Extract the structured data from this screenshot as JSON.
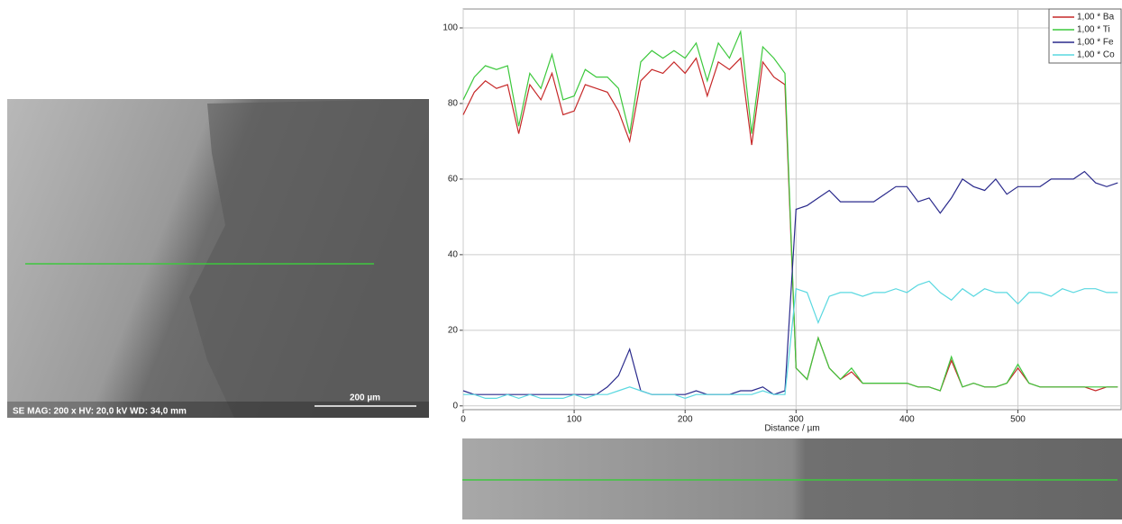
{
  "sem_image": {
    "info": "SE  MAG: 200 x  HV: 20,0 kV  WD: 34,0 mm",
    "scale_bar": "200 µm"
  },
  "chart_data": {
    "type": "line",
    "x_label": "Distance / µm",
    "x": [
      0,
      10,
      20,
      30,
      40,
      50,
      60,
      70,
      80,
      90,
      100,
      110,
      120,
      130,
      140,
      150,
      160,
      170,
      180,
      190,
      200,
      210,
      220,
      230,
      240,
      250,
      260,
      270,
      280,
      290,
      300,
      310,
      320,
      330,
      340,
      350,
      360,
      370,
      380,
      390,
      400,
      410,
      420,
      430,
      440,
      450,
      460,
      470,
      480,
      490,
      500,
      510,
      520,
      530,
      540,
      550,
      560,
      570,
      580,
      590
    ],
    "series": [
      {
        "name": "1,00 * Ba",
        "color": "#c62828",
        "values": [
          77,
          83,
          86,
          84,
          85,
          72,
          85,
          81,
          88,
          77,
          78,
          85,
          84,
          83,
          78,
          70,
          86,
          89,
          88,
          91,
          88,
          92,
          82,
          91,
          89,
          92,
          69,
          91,
          87,
          85,
          10,
          7,
          18,
          10,
          7,
          9,
          6,
          6,
          6,
          6,
          6,
          5,
          5,
          4,
          12,
          5,
          6,
          5,
          5,
          6,
          10,
          6,
          5,
          5,
          5,
          5,
          5,
          4,
          5,
          5
        ]
      },
      {
        "name": "1,00 * Ti",
        "color": "#3cc83c",
        "values": [
          81,
          87,
          90,
          89,
          90,
          74,
          88,
          84,
          93,
          81,
          82,
          89,
          87,
          87,
          84,
          72,
          91,
          94,
          92,
          94,
          92,
          96,
          86,
          96,
          92,
          99,
          72,
          95,
          92,
          88,
          10,
          7,
          18,
          10,
          7,
          10,
          6,
          6,
          6,
          6,
          6,
          5,
          5,
          4,
          13,
          5,
          6,
          5,
          5,
          6,
          11,
          6,
          5,
          5,
          5,
          5,
          5,
          5,
          5,
          5
        ]
      },
      {
        "name": "1,00 * Fe",
        "color": "#2a2a8c",
        "values": [
          4,
          3,
          3,
          3,
          3,
          3,
          3,
          3,
          3,
          3,
          3,
          3,
          3,
          5,
          8,
          15,
          4,
          3,
          3,
          3,
          3,
          4,
          3,
          3,
          3,
          4,
          4,
          5,
          3,
          4,
          52,
          53,
          55,
          57,
          54,
          54,
          54,
          54,
          56,
          58,
          58,
          54,
          55,
          51,
          55,
          60,
          58,
          57,
          60,
          56,
          58,
          58,
          58,
          60,
          60,
          60,
          62,
          59,
          58,
          59
        ]
      },
      {
        "name": "1,00 * Co",
        "color": "#5ad8e0",
        "values": [
          3,
          3,
          2,
          2,
          3,
          2,
          3,
          2,
          2,
          2,
          3,
          2,
          3,
          3,
          4,
          5,
          4,
          3,
          3,
          3,
          2,
          3,
          3,
          3,
          3,
          3,
          3,
          4,
          3,
          3,
          31,
          30,
          22,
          29,
          30,
          30,
          29,
          30,
          30,
          31,
          30,
          32,
          33,
          30,
          28,
          31,
          29,
          31,
          30,
          30,
          27,
          30,
          30,
          29,
          31,
          30,
          31,
          31,
          30,
          30
        ]
      }
    ],
    "xlim": [
      0,
      593
    ],
    "ylim": [
      -1,
      105
    ],
    "xticks": [
      0,
      100,
      200,
      300,
      400,
      500
    ],
    "yticks": [
      0,
      20,
      40,
      60,
      80,
      100
    ],
    "grid": true,
    "legend": "top-right"
  }
}
